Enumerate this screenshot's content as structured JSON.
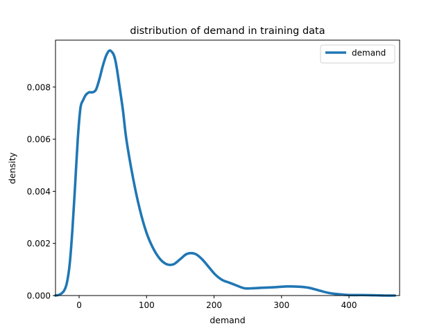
{
  "chart_data": {
    "type": "line",
    "title": "distribution of demand in training data",
    "xlabel": "demand",
    "ylabel": "density",
    "xlim": [
      -35,
      475
    ],
    "ylim": [
      0,
      0.0098
    ],
    "xticks": [
      0,
      100,
      200,
      300,
      400
    ],
    "xtick_labels": [
      "0",
      "100",
      "200",
      "300",
      "400"
    ],
    "yticks": [
      0,
      0.002,
      0.004,
      0.006,
      0.008
    ],
    "ytick_labels": [
      "0.000",
      "0.002",
      "0.004",
      "0.006",
      "0.008"
    ],
    "grid": false,
    "legend_position": "top-right",
    "series": [
      {
        "name": "demand",
        "color": "#1f77b4",
        "x": [
          -35,
          -28,
          -22,
          -18,
          -14,
          -10,
          -6,
          -2,
          2,
          6,
          10,
          15,
          20,
          25,
          30,
          35,
          40,
          45,
          50,
          53,
          56,
          60,
          65,
          70,
          80,
          90,
          100,
          110,
          120,
          130,
          140,
          150,
          160,
          172,
          182,
          192,
          202,
          212,
          222,
          232,
          245,
          258,
          272,
          290,
          308,
          325,
          340,
          355,
          370,
          385,
          400,
          420,
          440,
          455,
          468
        ],
        "y": [
          0.0,
          5e-05,
          0.0002,
          0.0005,
          0.0012,
          0.0025,
          0.0042,
          0.006,
          0.0072,
          0.0075,
          0.0077,
          0.0078,
          0.0078,
          0.0079,
          0.0083,
          0.0088,
          0.0092,
          0.0094,
          0.0093,
          0.0091,
          0.0087,
          0.008,
          0.0071,
          0.006,
          0.0045,
          0.0033,
          0.0024,
          0.0018,
          0.0014,
          0.0012,
          0.0012,
          0.0014,
          0.0016,
          0.0016,
          0.0014,
          0.0011,
          0.0008,
          0.0006,
          0.0005,
          0.0004,
          0.00028,
          0.00028,
          0.0003,
          0.00032,
          0.00035,
          0.00034,
          0.0003,
          0.0002,
          0.0001,
          5e-05,
          2e-05,
          2e-05,
          1e-05,
          0.0,
          0.0
        ]
      }
    ]
  }
}
